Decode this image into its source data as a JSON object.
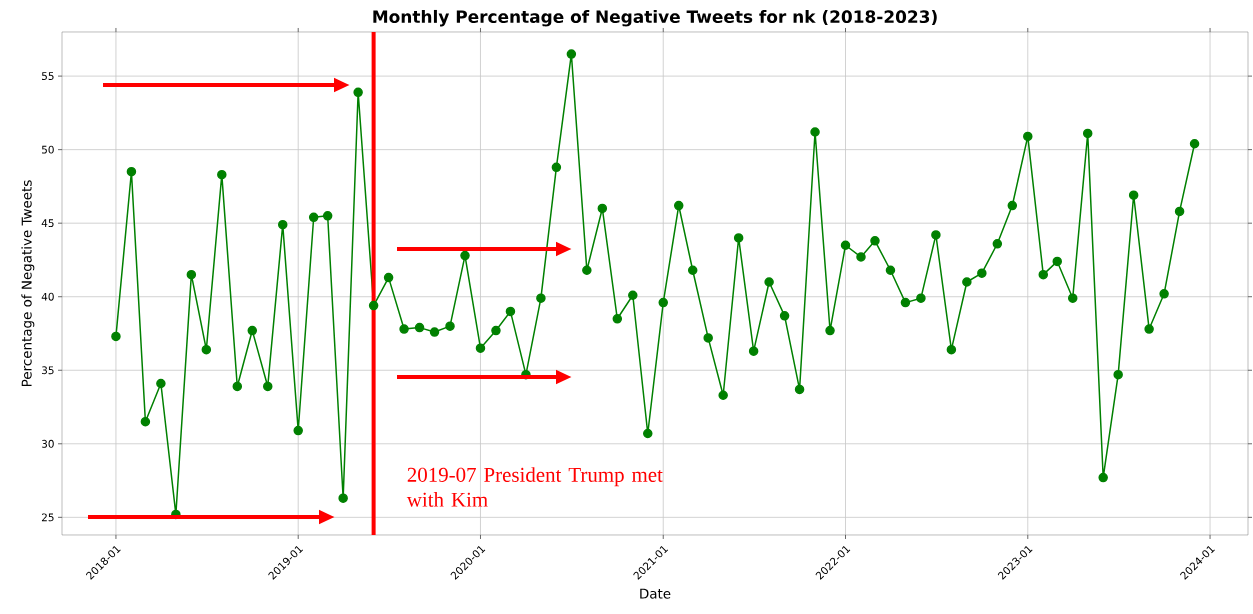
{
  "chart_data": {
    "type": "line",
    "title": "Monthly Percentage of Negative Tweets for nk (2018-2023)",
    "xlabel": "Date",
    "ylabel": "Percentage of Negative Tweets",
    "x": [
      "2018-01",
      "2018-02",
      "2018-03",
      "2018-04",
      "2018-05",
      "2018-06",
      "2018-07",
      "2018-08",
      "2018-09",
      "2018-10",
      "2018-11",
      "2018-12",
      "2019-01",
      "2019-02",
      "2019-03",
      "2019-04",
      "2019-05",
      "2019-06",
      "2019-07",
      "2019-08",
      "2019-09",
      "2019-10",
      "2019-11",
      "2019-12",
      "2020-01",
      "2020-02",
      "2020-03",
      "2020-04",
      "2020-05",
      "2020-06",
      "2020-07",
      "2020-08",
      "2020-09",
      "2020-10",
      "2020-11",
      "2020-12",
      "2021-01",
      "2021-02",
      "2021-03",
      "2021-04",
      "2021-05",
      "2021-06",
      "2021-07",
      "2021-08",
      "2021-09",
      "2021-10",
      "2021-11",
      "2021-12",
      "2022-01",
      "2022-02",
      "2022-03",
      "2022-04",
      "2022-05",
      "2022-06",
      "2022-07",
      "2022-08",
      "2022-09",
      "2022-10",
      "2022-11",
      "2022-12",
      "2023-01",
      "2023-02",
      "2023-03",
      "2023-04",
      "2023-05",
      "2023-06",
      "2023-07",
      "2023-08",
      "2023-09",
      "2023-10",
      "2023-11",
      "2023-12"
    ],
    "values": [
      37.3,
      48.5,
      31.5,
      34.1,
      25.2,
      41.5,
      36.4,
      48.3,
      33.9,
      37.7,
      33.9,
      44.9,
      30.9,
      45.4,
      45.5,
      26.3,
      53.9,
      39.4,
      41.3,
      37.8,
      37.9,
      37.6,
      38.0,
      42.8,
      36.5,
      37.7,
      39.0,
      34.7,
      39.9,
      48.8,
      56.5,
      41.8,
      46.0,
      38.5,
      40.1,
      30.7,
      39.6,
      46.2,
      41.8,
      37.2,
      33.3,
      44.0,
      36.3,
      41.0,
      38.7,
      33.7,
      51.2,
      37.7,
      43.5,
      42.7,
      43.8,
      41.8,
      39.6,
      39.9,
      44.2,
      36.4,
      41.0,
      41.6,
      43.6,
      46.2,
      50.9,
      41.5,
      42.4,
      39.9,
      51.1,
      27.7,
      34.7,
      46.9,
      37.8,
      40.2,
      45.8,
      50.4
    ],
    "color": "#008000",
    "marker": "circle",
    "grid": true,
    "xlim": [
      "2017-09-15",
      "2024-03-17"
    ],
    "ylim": [
      23.8,
      58.0
    ],
    "xticks": [
      {
        "value": "2018-01",
        "label": "2018-01"
      },
      {
        "value": "2019-01",
        "label": "2019-01"
      },
      {
        "value": "2020-01",
        "label": "2020-01"
      },
      {
        "value": "2021-01",
        "label": "2021-01"
      },
      {
        "value": "2022-01",
        "label": "2022-01"
      },
      {
        "value": "2023-01",
        "label": "2023-01"
      },
      {
        "value": "2024-01",
        "label": "2024-01"
      }
    ],
    "yticks": [
      25,
      30,
      35,
      40,
      45,
      50,
      55
    ],
    "ref_lines": [
      {
        "axis": "x",
        "value": "2019-06",
        "label": "2019-07 President Trump met with Kim",
        "color": "#ff0000"
      }
    ]
  }
}
